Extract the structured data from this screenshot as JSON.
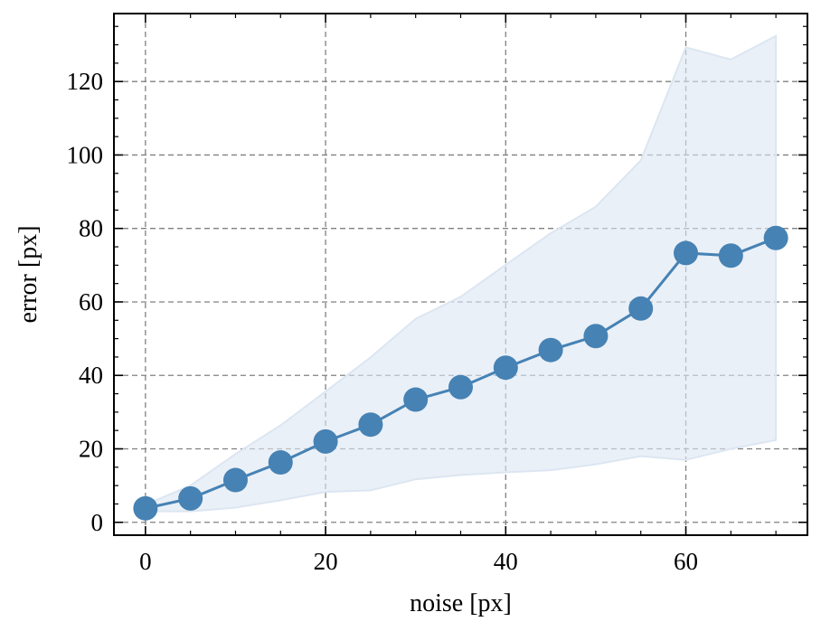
{
  "chart_data": {
    "type": "line",
    "xlabel": "noise [px]",
    "ylabel": "error [px]",
    "xlim": [
      -3.5,
      73.5
    ],
    "ylim": [
      -3.5,
      138.5
    ],
    "x_ticks": [
      0,
      20,
      40,
      60
    ],
    "y_ticks": [
      0,
      20,
      40,
      60,
      80,
      100,
      120
    ],
    "x_minor_step": 5,
    "y_minor_step": 5,
    "grid": true,
    "series": [
      {
        "x": [
          0,
          5,
          10,
          15,
          20,
          25,
          30,
          35,
          40,
          45,
          50,
          55,
          60,
          65,
          70
        ],
        "values": [
          3.8,
          6.5,
          11.5,
          16.3,
          22.0,
          26.6,
          33.4,
          36.8,
          42.1,
          46.9,
          50.7,
          58.2,
          73.3,
          72.6,
          77.4
        ],
        "lower": [
          3.0,
          3.0,
          4.0,
          6.0,
          8.3,
          8.7,
          11.7,
          12.9,
          13.6,
          14.2,
          15.8,
          18.0,
          17.0,
          20.0,
          22.4
        ],
        "upper": [
          4.8,
          10.0,
          18.6,
          26.4,
          35.6,
          44.9,
          55.4,
          61.4,
          70.1,
          78.7,
          85.9,
          98.5,
          129.3,
          126.0,
          132.4
        ],
        "color": "#4682b4",
        "band_color": "#dce6f2"
      }
    ]
  }
}
